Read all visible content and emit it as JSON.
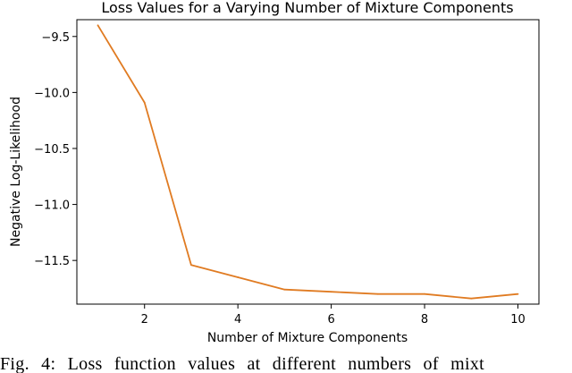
{
  "chart_data": {
    "type": "line",
    "title": "Loss Values for a Varying Number of Mixture Components",
    "xlabel": "Number of Mixture Components",
    "ylabel": "Negative Log-Likelihood",
    "xlim": [
      0.55,
      10.45
    ],
    "ylim": [
      -11.89,
      -9.35
    ],
    "x_ticks": [
      2,
      4,
      6,
      8,
      10
    ],
    "x_tick_labels": [
      "2",
      "4",
      "6",
      "8",
      "10"
    ],
    "y_ticks": [
      -9.5,
      -10.0,
      -10.5,
      -11.0,
      -11.5
    ],
    "y_tick_labels": [
      "−9.5",
      "−10.0",
      "−10.5",
      "−11.0",
      "−11.5"
    ],
    "grid": false,
    "series": [
      {
        "color": "#e07b22",
        "x": [
          1,
          2,
          3,
          4,
          5,
          6,
          7,
          8,
          9,
          10
        ],
        "values": [
          -9.4,
          -10.09,
          -11.54,
          -11.65,
          -11.76,
          -11.78,
          -11.8,
          -11.8,
          -11.84,
          -11.8
        ]
      }
    ]
  },
  "caption": "Fig. 4: Loss function values at different numbers of mixt"
}
